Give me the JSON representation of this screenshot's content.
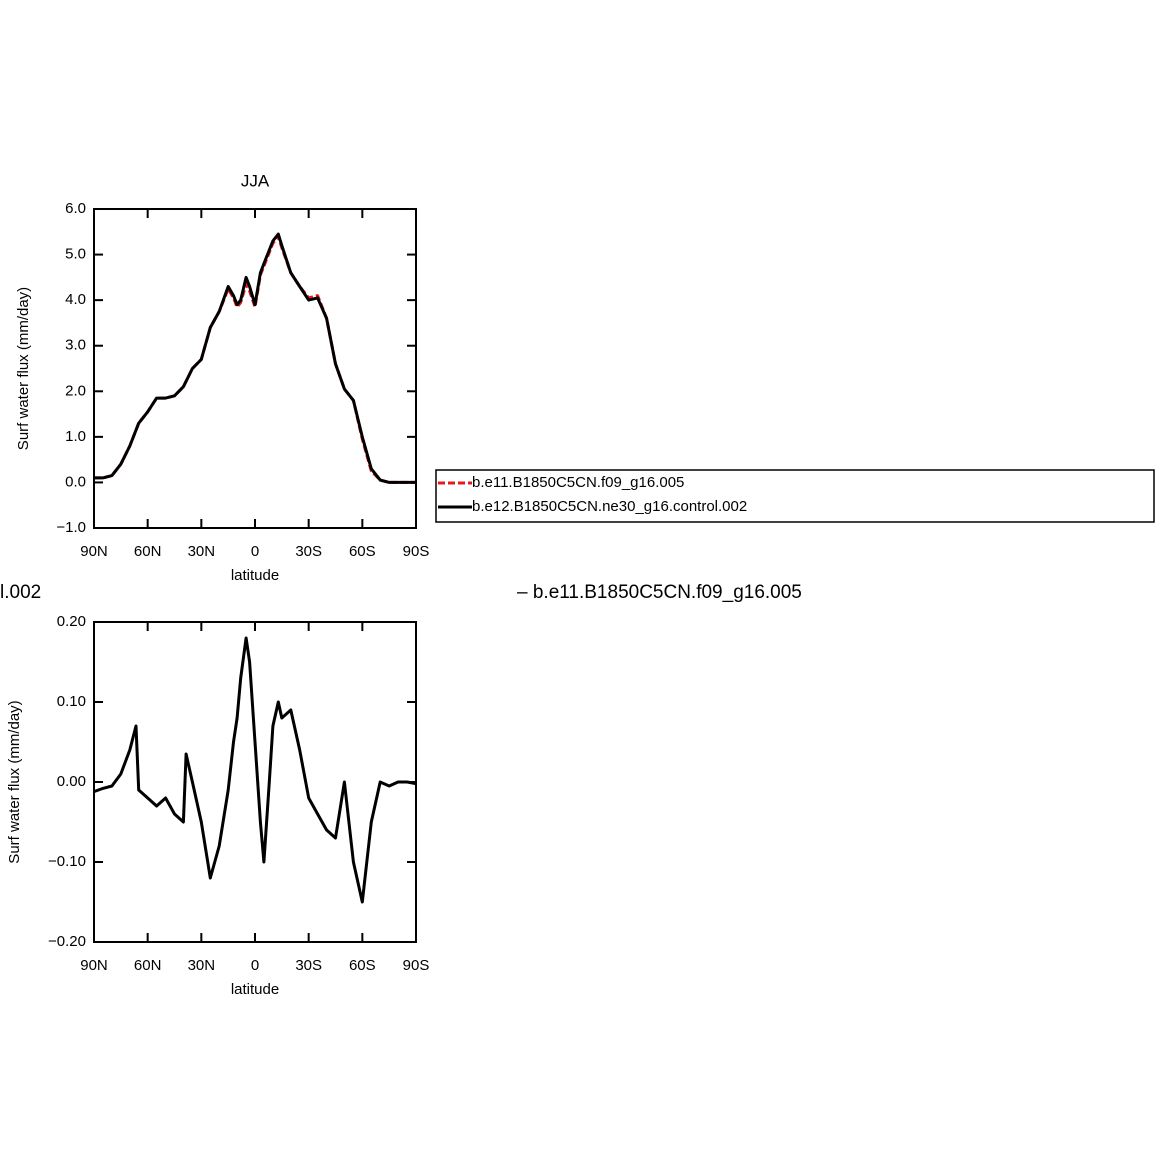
{
  "chart_data": [
    {
      "type": "line",
      "title": "JJA",
      "ylabel": "Surf water flux (mm/day)",
      "xlabel": "latitude",
      "x": [
        90,
        85,
        80,
        75,
        70,
        65,
        60,
        55,
        50,
        45,
        40,
        35,
        30,
        25,
        20,
        15,
        12,
        10,
        8,
        5,
        3,
        0,
        -3,
        -5,
        -8,
        -10,
        -13,
        -15,
        -20,
        -25,
        -30,
        -35,
        -40,
        -45,
        -50,
        -55,
        -60,
        -65,
        -70,
        -75,
        -80,
        -85,
        -90
      ],
      "xlim": [
        90,
        -90
      ],
      "xticks": [
        {
          "value": 90,
          "label": "90N"
        },
        {
          "value": 60,
          "label": "60N"
        },
        {
          "value": 30,
          "label": "30N"
        },
        0,
        {
          "value": -30,
          "label": "30S"
        },
        {
          "value": -60,
          "label": "60S"
        },
        {
          "value": -90,
          "label": "90S"
        }
      ],
      "ylim": [
        -1,
        6
      ],
      "yticks": [
        {
          "value": 6,
          "label": "6.0"
        },
        {
          "value": 5,
          "label": "5.0"
        },
        {
          "value": 4,
          "label": "4.0"
        },
        {
          "value": 3,
          "label": "3.0"
        },
        {
          "value": 2,
          "label": "2.0"
        },
        {
          "value": 1,
          "label": "1.0"
        },
        {
          "value": 0,
          "label": "0.0"
        },
        {
          "value": -1,
          "label": "−1.0"
        }
      ],
      "legend": "right",
      "series": [
        {
          "name": "b.e11.B1850C5CN.f09_g16.005",
          "color": "#e8191c",
          "dashed": true,
          "values": [
            0.1,
            0.1,
            0.15,
            0.4,
            0.8,
            1.3,
            1.55,
            1.85,
            1.85,
            1.9,
            2.1,
            2.5,
            2.7,
            3.4,
            3.75,
            4.25,
            4.05,
            3.85,
            3.95,
            4.35,
            4.2,
            3.85,
            4.55,
            4.75,
            5.05,
            5.25,
            5.4,
            5.15,
            4.6,
            4.3,
            4.05,
            4.1,
            3.6,
            2.6,
            2.05,
            1.8,
            0.95,
            0.25,
            0.05,
            0.0,
            0.0,
            0.0,
            0.0
          ]
        },
        {
          "name": "b.e12.B1850C5CN.ne30_g16.control.002",
          "color": "#000000",
          "dashed": false,
          "values": [
            0.1,
            0.1,
            0.15,
            0.4,
            0.8,
            1.3,
            1.55,
            1.85,
            1.85,
            1.9,
            2.1,
            2.5,
            2.7,
            3.4,
            3.75,
            4.3,
            4.1,
            3.9,
            4.0,
            4.5,
            4.3,
            3.9,
            4.6,
            4.8,
            5.1,
            5.3,
            5.45,
            5.2,
            4.6,
            4.3,
            4.0,
            4.05,
            3.6,
            2.6,
            2.05,
            1.8,
            1.0,
            0.3,
            0.05,
            0.0,
            0.0,
            0.0,
            0.0
          ]
        }
      ]
    },
    {
      "type": "line",
      "title": [
        "l.002",
        "– b.e11.B1850C5CN.f09_g16.005"
      ],
      "ylabel": "Surf water flux (mm/day)",
      "xlabel": "latitude",
      "x": [
        90,
        85,
        80,
        75,
        70,
        66.5,
        65,
        60,
        55,
        50,
        45,
        40,
        38.5,
        35,
        30,
        25,
        20,
        15,
        12,
        10,
        8,
        5,
        3,
        0,
        -3,
        -5,
        -8,
        -10,
        -13,
        -15,
        -20,
        -25,
        -30,
        -35,
        -40,
        -45,
        -50,
        -55,
        -60,
        -65,
        -70,
        -75,
        -80,
        -85,
        -90
      ],
      "xlim": [
        90,
        -90
      ],
      "xticks": [
        {
          "value": 90,
          "label": "90N"
        },
        {
          "value": 60,
          "label": "60N"
        },
        {
          "value": 30,
          "label": "30N"
        },
        0,
        {
          "value": -30,
          "label": "30S"
        },
        {
          "value": -60,
          "label": "60S"
        },
        {
          "value": -90,
          "label": "90S"
        }
      ],
      "ylim": [
        -0.2,
        0.2
      ],
      "yticks": [
        {
          "value": 0.2,
          "label": "0.20"
        },
        {
          "value": 0.1,
          "label": "0.10"
        },
        {
          "value": 0,
          "label": "0.00"
        },
        {
          "value": -0.1,
          "label": "−0.10"
        },
        {
          "value": -0.2,
          "label": "−0.20"
        }
      ],
      "series": [
        {
          "color": "#000000",
          "dashed": false,
          "values": [
            -0.012,
            -0.008,
            -0.005,
            0.01,
            0.04,
            0.07,
            -0.01,
            -0.02,
            -0.03,
            -0.02,
            -0.04,
            -0.05,
            0.035,
            0.0,
            -0.05,
            -0.12,
            -0.08,
            -0.01,
            0.05,
            0.08,
            0.13,
            0.18,
            0.15,
            0.05,
            -0.05,
            -0.1,
            0.0,
            0.07,
            0.1,
            0.08,
            0.09,
            0.04,
            -0.02,
            -0.04,
            -0.06,
            -0.07,
            0.0,
            -0.1,
            -0.15,
            -0.05,
            0.0,
            -0.005,
            0.0,
            0.0,
            -0.002
          ]
        }
      ]
    }
  ]
}
